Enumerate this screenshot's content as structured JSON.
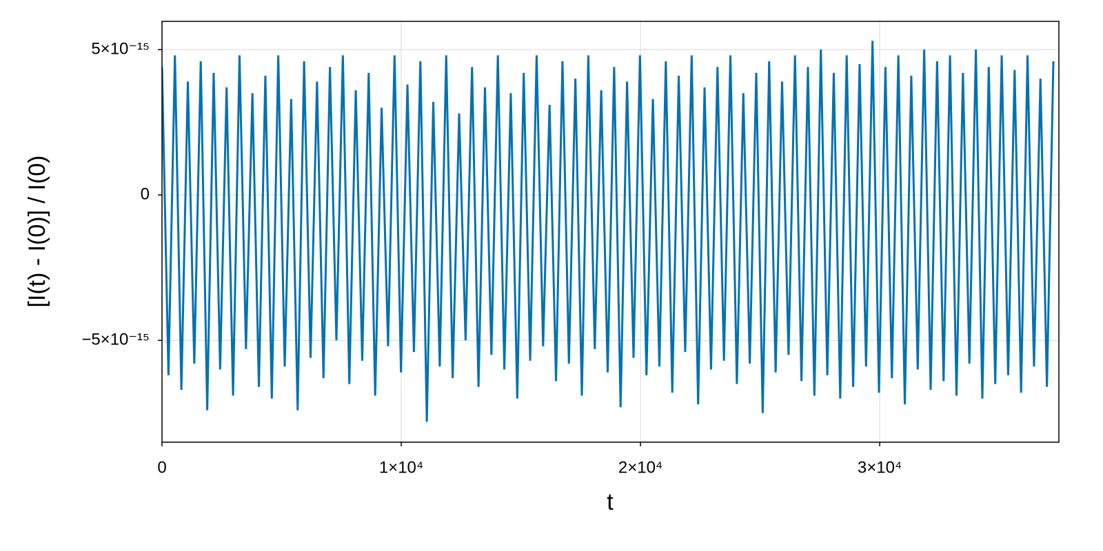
{
  "chart_data": {
    "type": "line",
    "xlabel": "t",
    "ylabel": "[I(t) - I(0)] / I(0)",
    "color": "#0072b2",
    "grid": true,
    "xlim": [
      0,
      37490
    ],
    "ylim": [
      -8.5e-15,
      5.97e-15
    ],
    "xticks": [
      0,
      {
        "value": 10000,
        "label": "1×10⁴"
      },
      {
        "value": 20000,
        "label": "2×10⁴"
      },
      {
        "value": 30000,
        "label": "3×10⁴"
      }
    ],
    "yticks": [
      {
        "value": -5e-15,
        "label": "−5×10⁻¹⁵"
      },
      0,
      {
        "value": 5e-15,
        "label": "5×10⁻¹⁵"
      }
    ],
    "x": [
      0,
      270,
      540,
      810,
      1080,
      1350,
      1620,
      1890,
      2160,
      2430,
      2700,
      2970,
      3240,
      3510,
      3780,
      4050,
      4320,
      4590,
      4860,
      5130,
      5400,
      5670,
      5940,
      6210,
      6480,
      6750,
      7020,
      7290,
      7560,
      7830,
      8100,
      8370,
      8640,
      8910,
      9180,
      9450,
      9720,
      9990,
      10260,
      10530,
      10800,
      11070,
      11340,
      11610,
      11880,
      12150,
      12420,
      12690,
      12960,
      13230,
      13500,
      13770,
      14040,
      14310,
      14580,
      14850,
      15120,
      15390,
      15660,
      15930,
      16200,
      16470,
      16740,
      17010,
      17280,
      17550,
      17820,
      18090,
      18360,
      18630,
      18900,
      19170,
      19440,
      19710,
      19980,
      20250,
      20520,
      20790,
      21060,
      21330,
      21600,
      21870,
      22140,
      22410,
      22680,
      22950,
      23220,
      23490,
      23760,
      24030,
      24300,
      24570,
      24840,
      25110,
      25380,
      25650,
      25920,
      26190,
      26460,
      26730,
      27000,
      27270,
      27540,
      27810,
      28080,
      28350,
      28620,
      28890,
      29160,
      29430,
      29700,
      29970,
      30240,
      30510,
      30780,
      31050,
      31320,
      31590,
      31860,
      32130,
      32400,
      32670,
      32940,
      33210,
      33480,
      33750,
      34020,
      34290,
      34560,
      34830,
      35100,
      35370,
      35640,
      35910,
      36180,
      36450,
      36720,
      36990,
      37260
    ],
    "values": [
      4.4e-15,
      -6.2e-15,
      4.8e-15,
      -6.7e-15,
      3.9e-15,
      -5.8e-15,
      4.6e-15,
      -7.4e-15,
      4.2e-15,
      -6e-15,
      3.7e-15,
      -6.9e-15,
      4.8e-15,
      -5.3e-15,
      3.5e-15,
      -6.6e-15,
      4.1e-15,
      -7e-15,
      4.8e-15,
      -5.9e-15,
      3.3e-15,
      -7.4e-15,
      4.6e-15,
      -5.6e-15,
      3.9e-15,
      -6.3e-15,
      4.4e-15,
      -5e-15,
      4.8e-15,
      -6.5e-15,
      3.6e-15,
      -5.7e-15,
      4.2e-15,
      -6.9e-15,
      3e-15,
      -5.2e-15,
      4.8e-15,
      -6.1e-15,
      3.8e-15,
      -5.4e-15,
      4.6e-15,
      -7.8e-15,
      3.2e-15,
      -5.9e-15,
      4.8e-15,
      -6.3e-15,
      2.8e-15,
      -5e-15,
      4.4e-15,
      -6.6e-15,
      3.7e-15,
      -5.5e-15,
      4.8e-15,
      -6e-15,
      3.5e-15,
      -7e-15,
      4.2e-15,
      -5.7e-15,
      4.8e-15,
      -5.2e-15,
      3.1e-15,
      -6.4e-15,
      4.6e-15,
      -5.8e-15,
      4e-15,
      -6.9e-15,
      4.8e-15,
      -5.3e-15,
      3.6e-15,
      -6.1e-15,
      4.4e-15,
      -7.3e-15,
      3.9e-15,
      -5.6e-15,
      4.8e-15,
      -6.2e-15,
      3.3e-15,
      -5.9e-15,
      4.6e-15,
      -6.8e-15,
      4.1e-15,
      -5.4e-15,
      4.8e-15,
      -7.2e-15,
      3.7e-15,
      -6e-15,
      4.4e-15,
      -5.7e-15,
      4.8e-15,
      -6.5e-15,
      3.5e-15,
      -5.8e-15,
      4.2e-15,
      -7.5e-15,
      4.6e-15,
      -6.1e-15,
      3.9e-15,
      -5.5e-15,
      4.8e-15,
      -6.4e-15,
      4.4e-15,
      -6.9e-15,
      5e-15,
      -6.2e-15,
      4.2e-15,
      -7e-15,
      4.8e-15,
      -6.6e-15,
      4.5e-15,
      -5.9e-15,
      5.3e-15,
      -6.8e-15,
      4.4e-15,
      -6.3e-15,
      4.8e-15,
      -7.2e-15,
      4.1e-15,
      -6e-15,
      5e-15,
      -6.7e-15,
      4.6e-15,
      -6.4e-15,
      4.8e-15,
      -6.9e-15,
      4.2e-15,
      -5.8e-15,
      5e-15,
      -7e-15,
      4.4e-15,
      -6.5e-15,
      4.8e-15,
      -6.2e-15,
      4.3e-15,
      -6.8e-15,
      4.8e-15,
      -5.9e-15,
      4e-15,
      -6.6e-15,
      4.6e-15
    ]
  }
}
